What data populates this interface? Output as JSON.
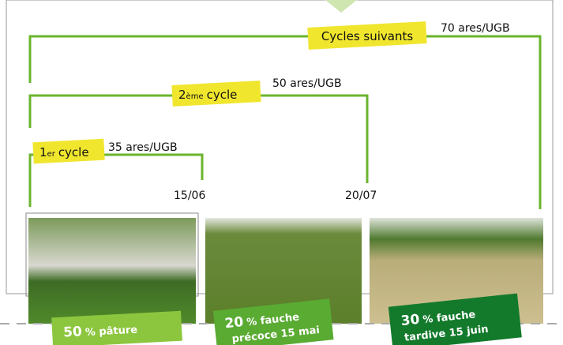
{
  "brackets": [
    {
      "label": "Cycles suivants",
      "area": "70 ares/UGB"
    },
    {
      "number": "2",
      "suffix": "ème",
      "label": "cycle",
      "area": "50 ares/UGB",
      "date": "20/07"
    },
    {
      "number": "1",
      "suffix": "er",
      "label": "cycle",
      "area": "35 ares/UGB",
      "date": "15/06"
    }
  ],
  "photos": [
    {
      "percent": "50",
      "text": "% pâture"
    },
    {
      "percent": "20",
      "text": "% fauche",
      "line2": "précoce 15 mai"
    },
    {
      "percent": "30",
      "text": "% fauche",
      "line2": "tardive 15 juin"
    }
  ]
}
